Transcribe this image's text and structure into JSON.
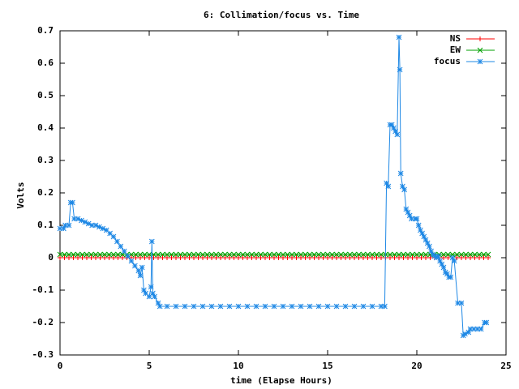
{
  "chart_data": {
    "type": "line",
    "title": "6: Collimation/focus vs. Time",
    "xlabel": "time (Elapse Hours)",
    "ylabel": "Volts",
    "xlim": [
      0,
      25
    ],
    "xticks": [
      0,
      5,
      10,
      15,
      20,
      25
    ],
    "ylim": [
      -0.3,
      0.7
    ],
    "yticks": [
      -0.3,
      -0.2,
      -0.1,
      0,
      0.1,
      0.2,
      0.3,
      0.4,
      0.5,
      0.6,
      0.7
    ],
    "grid": false,
    "legend": "top-right",
    "series": [
      {
        "name": "NS",
        "color": "#ff0000",
        "marker": "plus",
        "x": [
          0,
          0.25,
          0.5,
          0.75,
          1,
          1.25,
          1.5,
          1.75,
          2,
          2.25,
          2.5,
          2.75,
          3,
          3.25,
          3.5,
          3.75,
          4,
          4.25,
          4.5,
          4.75,
          5,
          5.25,
          5.5,
          5.75,
          6,
          6.25,
          6.5,
          6.75,
          7,
          7.25,
          7.5,
          7.75,
          8,
          8.25,
          8.5,
          8.75,
          9,
          9.25,
          9.5,
          9.75,
          10,
          10.25,
          10.5,
          10.75,
          11,
          11.25,
          11.5,
          11.75,
          12,
          12.25,
          12.5,
          12.75,
          13,
          13.25,
          13.5,
          13.75,
          14,
          14.25,
          14.5,
          14.75,
          15,
          15.25,
          15.5,
          15.75,
          16,
          16.25,
          16.5,
          16.75,
          17,
          17.25,
          17.5,
          17.75,
          18,
          18.25,
          18.5,
          18.75,
          19,
          19.25,
          19.5,
          19.75,
          20,
          20.25,
          20.5,
          20.75,
          21,
          21.25,
          21.5,
          21.75,
          22,
          22.25,
          22.5,
          22.75,
          23,
          23.25,
          23.5,
          23.75,
          24
        ],
        "values": [
          0,
          0,
          0,
          0,
          0,
          0,
          0,
          0,
          0,
          0,
          0,
          0,
          0,
          0,
          0,
          0,
          0,
          0,
          0,
          0,
          0,
          0,
          0,
          0,
          0,
          0,
          0,
          0,
          0,
          0,
          0,
          0,
          0,
          0,
          0,
          0,
          0,
          0,
          0,
          0,
          0,
          0,
          0,
          0,
          0,
          0,
          0,
          0,
          0,
          0,
          0,
          0,
          0,
          0,
          0,
          0,
          0,
          0,
          0,
          0,
          0,
          0,
          0,
          0,
          0,
          0,
          0,
          0,
          0,
          0,
          0,
          0,
          0,
          0,
          0,
          0,
          0,
          0,
          0,
          0,
          0,
          0,
          0,
          0,
          0,
          0,
          0,
          0,
          0,
          0,
          0,
          0,
          0,
          0,
          0,
          0,
          0
        ]
      },
      {
        "name": "EW",
        "color": "#00a000",
        "marker": "cross",
        "x": [
          0,
          0.25,
          0.5,
          0.75,
          1,
          1.25,
          1.5,
          1.75,
          2,
          2.25,
          2.5,
          2.75,
          3,
          3.25,
          3.5,
          3.75,
          4,
          4.25,
          4.5,
          4.75,
          5,
          5.25,
          5.5,
          5.75,
          6,
          6.25,
          6.5,
          6.75,
          7,
          7.25,
          7.5,
          7.75,
          8,
          8.25,
          8.5,
          8.75,
          9,
          9.25,
          9.5,
          9.75,
          10,
          10.25,
          10.5,
          10.75,
          11,
          11.25,
          11.5,
          11.75,
          12,
          12.25,
          12.5,
          12.75,
          13,
          13.25,
          13.5,
          13.75,
          14,
          14.25,
          14.5,
          14.75,
          15,
          15.25,
          15.5,
          15.75,
          16,
          16.25,
          16.5,
          16.75,
          17,
          17.25,
          17.5,
          17.75,
          18,
          18.25,
          18.5,
          18.75,
          19,
          19.25,
          19.5,
          19.75,
          20,
          20.25,
          20.5,
          20.75,
          21,
          21.25,
          21.5,
          21.75,
          22,
          22.25,
          22.5,
          22.75,
          23,
          23.25,
          23.5,
          23.75,
          24
        ],
        "values": [
          0.01,
          0.01,
          0.01,
          0.01,
          0.01,
          0.01,
          0.01,
          0.01,
          0.01,
          0.01,
          0.01,
          0.01,
          0.01,
          0.01,
          0.01,
          0.01,
          0.01,
          0.01,
          0.01,
          0.01,
          0.01,
          0.01,
          0.01,
          0.01,
          0.01,
          0.01,
          0.01,
          0.01,
          0.01,
          0.01,
          0.01,
          0.01,
          0.01,
          0.01,
          0.01,
          0.01,
          0.01,
          0.01,
          0.01,
          0.01,
          0.01,
          0.01,
          0.01,
          0.01,
          0.01,
          0.01,
          0.01,
          0.01,
          0.01,
          0.01,
          0.01,
          0.01,
          0.01,
          0.01,
          0.01,
          0.01,
          0.01,
          0.01,
          0.01,
          0.01,
          0.01,
          0.01,
          0.01,
          0.01,
          0.01,
          0.01,
          0.01,
          0.01,
          0.01,
          0.01,
          0.01,
          0.01,
          0.01,
          0.01,
          0.01,
          0.01,
          0.01,
          0.01,
          0.01,
          0.01,
          0.01,
          0.01,
          0.01,
          0.01,
          0.01,
          0.01,
          0.01,
          0.01,
          0.01,
          0.01,
          0.01,
          0.01,
          0.01,
          0.01,
          0.01,
          0.01,
          0.01
        ]
      },
      {
        "name": "focus",
        "color": "#1e88e5",
        "marker": "star",
        "x": [
          0,
          0.2,
          0.3,
          0.5,
          0.6,
          0.7,
          0.8,
          1.0,
          1.2,
          1.4,
          1.6,
          1.8,
          2.0,
          2.2,
          2.4,
          2.6,
          2.8,
          3.0,
          3.2,
          3.4,
          3.6,
          3.8,
          4.0,
          4.2,
          4.4,
          4.5,
          4.6,
          4.7,
          4.8,
          5.0,
          5.1,
          5.15,
          5.2,
          5.3,
          5.5,
          5.6,
          6,
          6.5,
          7,
          7.5,
          8,
          8.5,
          9,
          9.5,
          10,
          10.5,
          11,
          11.5,
          12,
          12.5,
          13,
          13.5,
          14,
          14.5,
          15,
          15.5,
          16,
          16.5,
          17,
          17.5,
          18,
          18.2,
          18.3,
          18.4,
          18.5,
          18.6,
          18.7,
          18.8,
          18.9,
          19.0,
          19.05,
          19.1,
          19.2,
          19.3,
          19.4,
          19.5,
          19.6,
          19.7,
          19.9,
          20.0,
          20.1,
          20.2,
          20.3,
          20.4,
          20.5,
          20.6,
          20.7,
          20.8,
          20.9,
          21.0,
          21.1,
          21.2,
          21.3,
          21.4,
          21.5,
          21.6,
          21.7,
          21.8,
          21.9,
          22.0,
          22.1,
          22.3,
          22.5,
          22.6,
          22.7,
          22.9,
          23.0,
          23.2,
          23.4,
          23.6,
          23.8,
          23.9
        ],
        "values": [
          0.09,
          0.09,
          0.1,
          0.1,
          0.17,
          0.17,
          0.12,
          0.12,
          0.115,
          0.11,
          0.105,
          0.1,
          0.1,
          0.095,
          0.09,
          0.085,
          0.075,
          0.065,
          0.05,
          0.035,
          0.02,
          0.005,
          -0.01,
          -0.025,
          -0.04,
          -0.055,
          -0.03,
          -0.1,
          -0.11,
          -0.12,
          -0.09,
          0.05,
          -0.11,
          -0.12,
          -0.14,
          -0.15,
          -0.15,
          -0.15,
          -0.15,
          -0.15,
          -0.15,
          -0.15,
          -0.15,
          -0.15,
          -0.15,
          -0.15,
          -0.15,
          -0.15,
          -0.15,
          -0.15,
          -0.15,
          -0.15,
          -0.15,
          -0.15,
          -0.15,
          -0.15,
          -0.15,
          -0.15,
          -0.15,
          -0.15,
          -0.15,
          -0.15,
          0.23,
          0.22,
          0.41,
          0.41,
          0.4,
          0.39,
          0.38,
          0.68,
          0.58,
          0.26,
          0.22,
          0.21,
          0.15,
          0.14,
          0.13,
          0.12,
          0.12,
          0.12,
          0.1,
          0.085,
          0.075,
          0.065,
          0.055,
          0.045,
          0.035,
          0.02,
          0.01,
          0.005,
          0,
          0.005,
          -0.01,
          -0.02,
          -0.03,
          -0.045,
          -0.05,
          -0.06,
          -0.06,
          0,
          -0.01,
          -0.14,
          -0.14,
          -0.24,
          -0.235,
          -0.23,
          -0.22,
          -0.22,
          -0.22,
          -0.22,
          -0.2,
          -0.2
        ]
      }
    ]
  }
}
